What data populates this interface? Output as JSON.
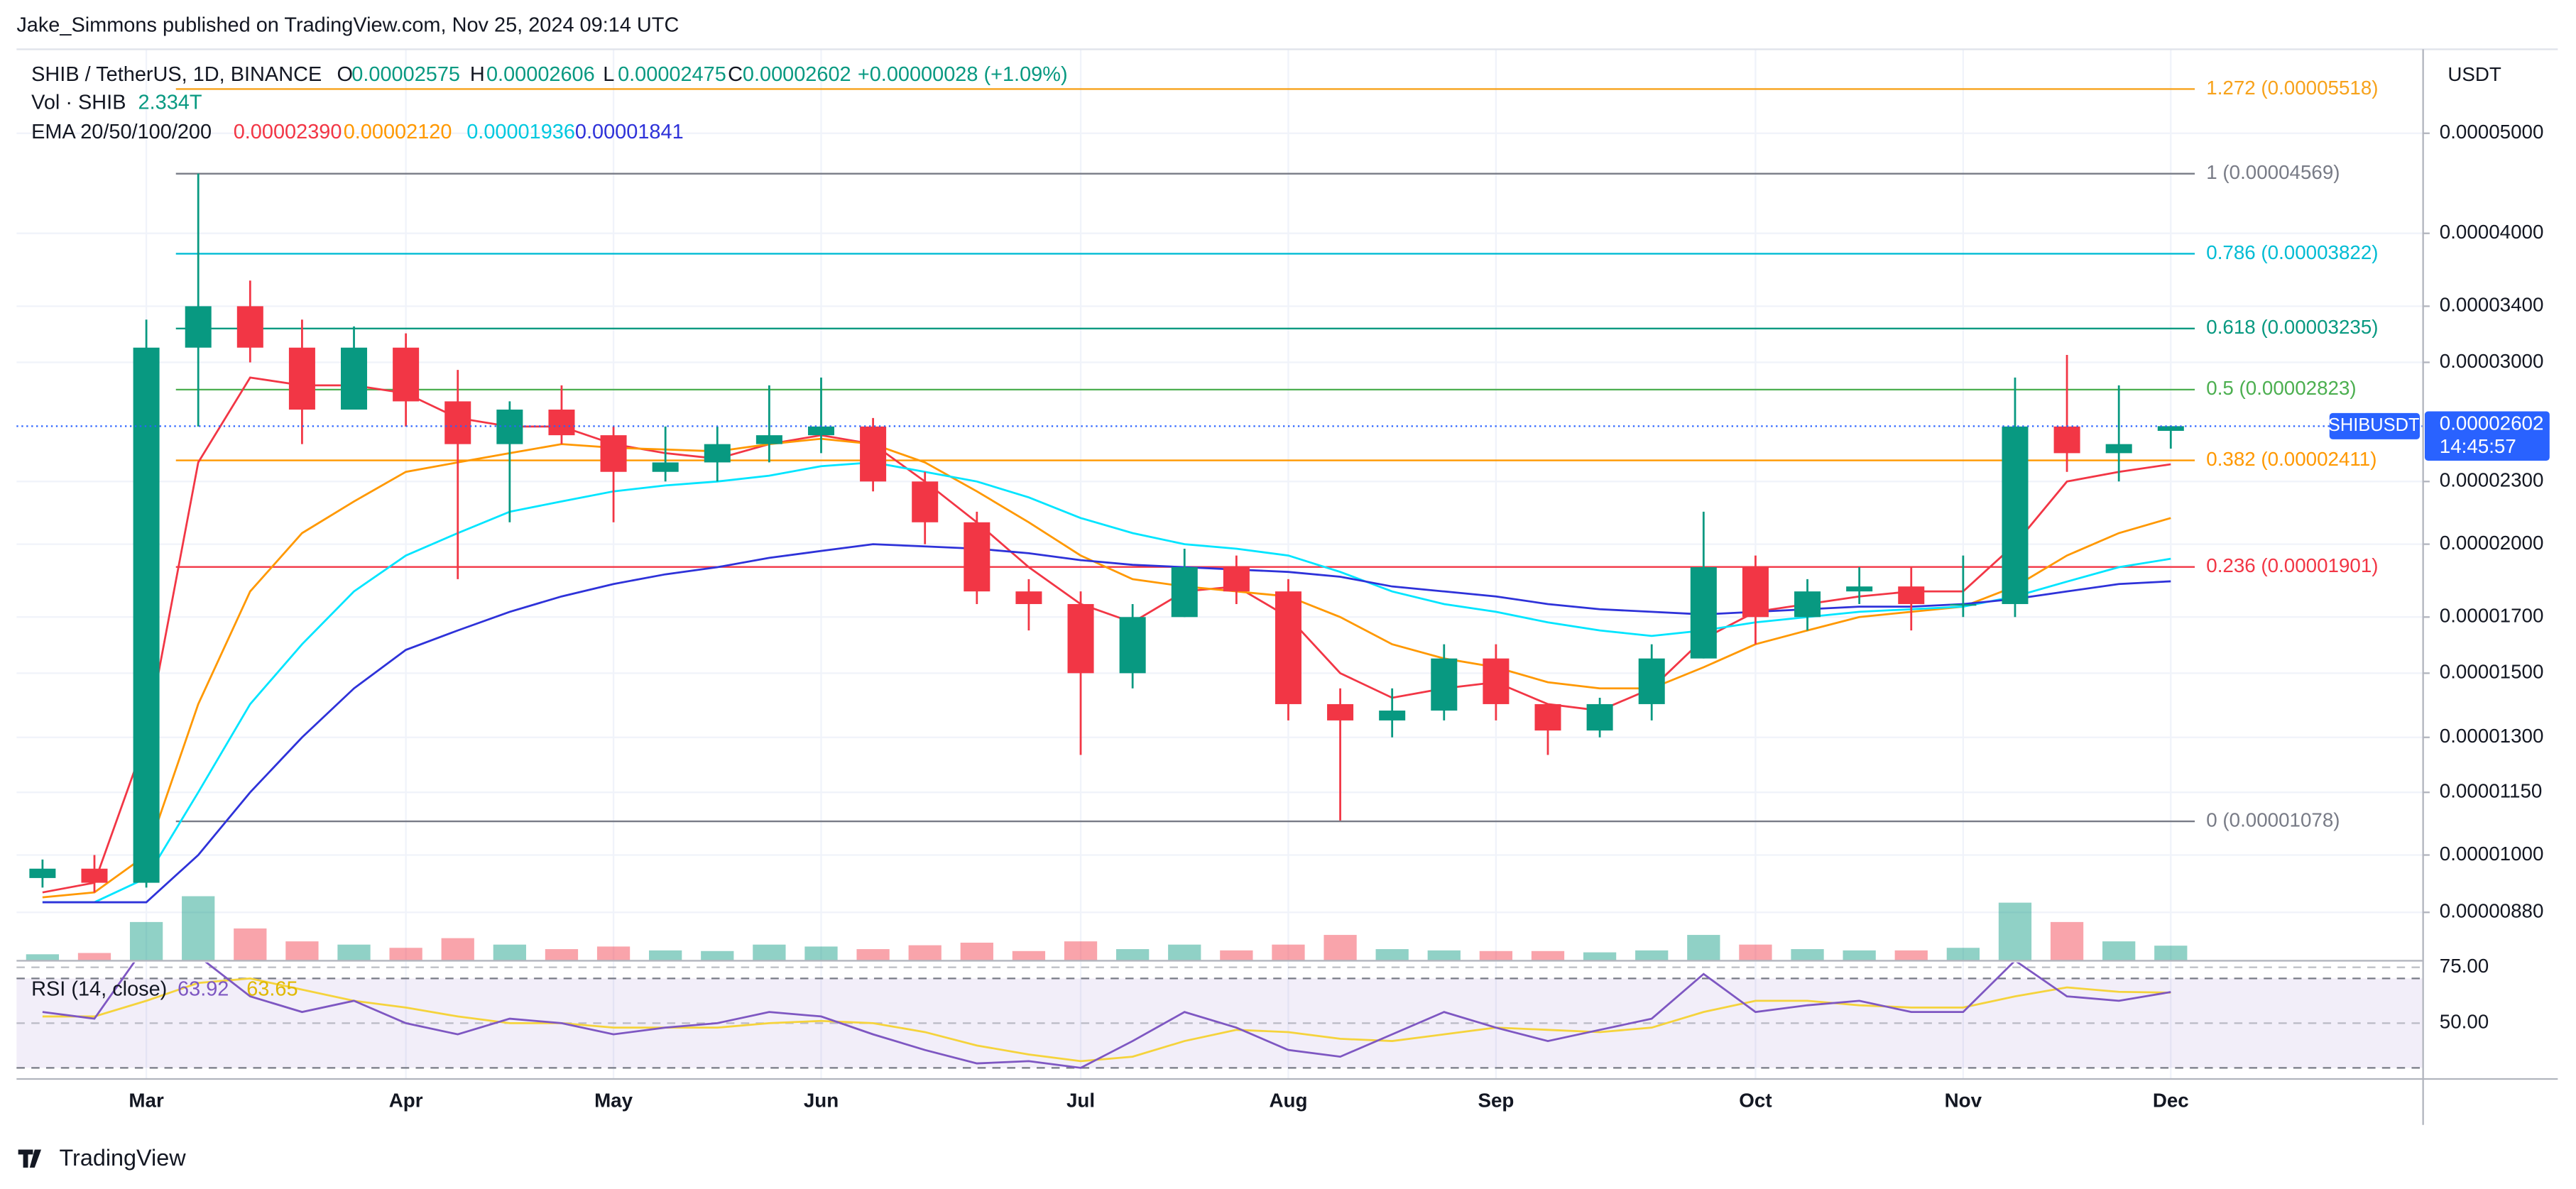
{
  "chart_data": {
    "type": "candlestick",
    "header": "Jake_Simmons published on TradingView.com, Nov 25, 2024 09:14 UTC",
    "legend": {
      "symbol": "SHIB / TetherUS, 1D, BINANCE",
      "ohlc": [
        "O",
        "0.00002575",
        "H",
        "0.00002606",
        "L",
        "0.00002475",
        "C",
        "0.00002602",
        "+0.00000028 (+1.09%)"
      ],
      "volume": [
        "Vol · SHIB",
        "2.334T"
      ],
      "ema": [
        "EMA 20/50/100/200",
        "0.00002390",
        "0.00002120",
        "0.00001936",
        "0.00001841"
      ]
    },
    "currency": "USDT",
    "price_tag": {
      "symbol": "SHIBUSDT",
      "price": {
        "value": 2.602e-05,
        "label": "0.00002602"
      },
      "countdown": "14:45:57"
    },
    "log_scale": true,
    "grid": true,
    "up_color": "#089981",
    "down_color": "#f23645",
    "categories": [
      null,
      null,
      "Mar",
      null,
      null,
      null,
      null,
      "Apr",
      null,
      null,
      null,
      "May",
      null,
      null,
      null,
      "Jun",
      null,
      null,
      null,
      null,
      "Jul",
      null,
      null,
      null,
      "Aug",
      null,
      null,
      null,
      "Sep",
      null,
      null,
      null,
      null,
      "Oct",
      null,
      null,
      null,
      "Nov",
      null,
      null,
      null,
      "Dec"
    ],
    "open": [
      9.5e-06,
      9.7e-06,
      9.4e-06,
      3.1e-05,
      3.4e-05,
      3.1e-05,
      2.7e-05,
      3.1e-05,
      2.75e-05,
      2.5e-05,
      2.7e-05,
      2.55e-05,
      2.35e-05,
      2.4e-05,
      2.5e-05,
      2.55e-05,
      2.6e-05,
      2.3e-05,
      2.1e-05,
      1.8e-05,
      1.75e-05,
      1.5e-05,
      1.7e-05,
      1.9e-05,
      1.8e-05,
      1.4e-05,
      1.35e-05,
      1.38e-05,
      1.55e-05,
      1.4e-05,
      1.32e-05,
      1.4e-05,
      1.55e-05,
      1.9e-05,
      1.7e-05,
      1.8e-05,
      1.82e-05,
      1.75e-05,
      1.75e-05,
      2.6e-05,
      2.45e-05,
      2.575e-05
    ],
    "high": [
      9.9e-06,
      1e-05,
      3.3e-05,
      4.57e-05,
      3.6e-05,
      3.3e-05,
      3.25e-05,
      3.2e-05,
      2.95e-05,
      2.75e-05,
      2.85e-05,
      2.6e-05,
      2.6e-05,
      2.6e-05,
      2.85e-05,
      2.9e-05,
      2.65e-05,
      2.35e-05,
      2.15e-05,
      1.85e-05,
      1.8e-05,
      1.75e-05,
      1.98e-05,
      1.95e-05,
      1.85e-05,
      1.45e-05,
      1.45e-05,
      1.6e-05,
      1.6e-05,
      1.4e-05,
      1.42e-05,
      1.6e-05,
      2.15e-05,
      1.95e-05,
      1.85e-05,
      1.9e-05,
      1.9e-05,
      1.95e-05,
      2.9e-05,
      3.05e-05,
      2.85e-05,
      2.606e-05
    ],
    "low": [
      9.3e-06,
      9.2e-06,
      9.3e-06,
      2.6e-05,
      3e-05,
      2.5e-05,
      2.7e-05,
      2.6e-05,
      1.85e-05,
      2.1e-05,
      2.5e-05,
      2.1e-05,
      2.3e-05,
      2.3e-05,
      2.4e-05,
      2.45e-05,
      2.25e-05,
      2e-05,
      1.75e-05,
      1.65e-05,
      1.25e-05,
      1.45e-05,
      1.7e-05,
      1.75e-05,
      1.35e-05,
      1.08e-05,
      1.3e-05,
      1.35e-05,
      1.35e-05,
      1.25e-05,
      1.3e-05,
      1.35e-05,
      1.55e-05,
      1.6e-05,
      1.65e-05,
      1.75e-05,
      1.65e-05,
      1.7e-05,
      1.7e-05,
      2.35e-05,
      2.3e-05,
      2.475e-05
    ],
    "close": [
      9.7e-06,
      9.4e-06,
      3.1e-05,
      3.4e-05,
      3.1e-05,
      2.7e-05,
      3.1e-05,
      2.75e-05,
      2.5e-05,
      2.7e-05,
      2.55e-05,
      2.35e-05,
      2.4e-05,
      2.5e-05,
      2.55e-05,
      2.6e-05,
      2.3e-05,
      2.1e-05,
      1.8e-05,
      1.75e-05,
      1.5e-05,
      1.7e-05,
      1.9e-05,
      1.8e-05,
      1.4e-05,
      1.35e-05,
      1.38e-05,
      1.55e-05,
      1.4e-05,
      1.32e-05,
      1.4e-05,
      1.55e-05,
      1.9e-05,
      1.7e-05,
      1.8e-05,
      1.82e-05,
      1.75e-05,
      1.75e-05,
      2.6e-05,
      2.45e-05,
      2.5e-05,
      2.602e-05
    ],
    "ylim": [
      7.9e-06,
      6.03e-05
    ],
    "yticks": [
      {
        "value": 5e-05,
        "label": "0.00005000"
      },
      {
        "value": 4e-05,
        "label": "0.00004000"
      },
      {
        "value": 3.4e-05,
        "label": "0.00003400"
      },
      {
        "value": 3e-05,
        "label": "0.00003000"
      },
      {
        "value": 2.3e-05,
        "label": "0.00002300"
      },
      {
        "value": 2e-05,
        "label": "0.00002000"
      },
      {
        "value": 1.7e-05,
        "label": "0.00001700"
      },
      {
        "value": 1.5e-05,
        "label": "0.00001500"
      },
      {
        "value": 1.3e-05,
        "label": "0.00001300"
      },
      {
        "value": 1.15e-05,
        "label": "0.00001150"
      },
      {
        "value": 1e-05,
        "label": "0.00001000"
      },
      {
        "value": 8.8e-06,
        "label": "0.00000880"
      }
    ],
    "ema": [
      {
        "color": "#f23645",
        "values": [
          9.2e-06,
          9.4e-06,
          1.3e-05,
          2.4e-05,
          2.9e-05,
          2.85e-05,
          2.85e-05,
          2.8e-05,
          2.65e-05,
          2.6e-05,
          2.6e-05,
          2.5e-05,
          2.45e-05,
          2.42e-05,
          2.5e-05,
          2.55e-05,
          2.5e-05,
          2.3e-05,
          2.1e-05,
          1.9e-05,
          1.75e-05,
          1.68e-05,
          1.8e-05,
          1.82e-05,
          1.7e-05,
          1.5e-05,
          1.42e-05,
          1.45e-05,
          1.47e-05,
          1.4e-05,
          1.38e-05,
          1.45e-05,
          1.62e-05,
          1.72e-05,
          1.75e-05,
          1.78e-05,
          1.8e-05,
          1.8e-05,
          2e-05,
          2.3e-05,
          2.35e-05,
          2.39e-05
        ]
      },
      {
        "color": "#ff9800",
        "values": [
          9.1e-06,
          9.2e-06,
          1e-05,
          1.4e-05,
          1.8e-05,
          2.05e-05,
          2.2e-05,
          2.35e-05,
          2.4e-05,
          2.45e-05,
          2.5e-05,
          2.48e-05,
          2.47e-05,
          2.46e-05,
          2.5e-05,
          2.53e-05,
          2.5e-05,
          2.4e-05,
          2.25e-05,
          2.1e-05,
          1.95e-05,
          1.85e-05,
          1.82e-05,
          1.8e-05,
          1.78e-05,
          1.7e-05,
          1.6e-05,
          1.55e-05,
          1.52e-05,
          1.47e-05,
          1.45e-05,
          1.45e-05,
          1.52e-05,
          1.6e-05,
          1.65e-05,
          1.7e-05,
          1.72e-05,
          1.74e-05,
          1.82e-05,
          1.95e-05,
          2.05e-05,
          2.12e-05
        ]
      },
      {
        "color": "#00e5ff",
        "values": [
          9e-06,
          9e-06,
          9.5e-06,
          1.15e-05,
          1.4e-05,
          1.6e-05,
          1.8e-05,
          1.95e-05,
          2.05e-05,
          2.15e-05,
          2.2e-05,
          2.25e-05,
          2.28e-05,
          2.3e-05,
          2.33e-05,
          2.38e-05,
          2.4e-05,
          2.35e-05,
          2.3e-05,
          2.22e-05,
          2.12e-05,
          2.05e-05,
          2e-05,
          1.98e-05,
          1.95e-05,
          1.88e-05,
          1.8e-05,
          1.75e-05,
          1.72e-05,
          1.68e-05,
          1.65e-05,
          1.63e-05,
          1.65e-05,
          1.68e-05,
          1.7e-05,
          1.72e-05,
          1.73e-05,
          1.74e-05,
          1.78e-05,
          1.84e-05,
          1.9e-05,
          1.936e-05
        ]
      },
      {
        "color": "#2e32d9",
        "values": [
          9e-06,
          9e-06,
          9e-06,
          1e-05,
          1.15e-05,
          1.3e-05,
          1.45e-05,
          1.58e-05,
          1.65e-05,
          1.72e-05,
          1.78e-05,
          1.83e-05,
          1.87e-05,
          1.9e-05,
          1.94e-05,
          1.97e-05,
          2e-05,
          1.99e-05,
          1.98e-05,
          1.96e-05,
          1.93e-05,
          1.91e-05,
          1.9e-05,
          1.89e-05,
          1.88e-05,
          1.86e-05,
          1.82e-05,
          1.8e-05,
          1.78e-05,
          1.75e-05,
          1.73e-05,
          1.72e-05,
          1.71e-05,
          1.72e-05,
          1.73e-05,
          1.74e-05,
          1.74e-05,
          1.75e-05,
          1.77e-05,
          1.8e-05,
          1.83e-05,
          1.841e-05
        ]
      }
    ],
    "fib_levels": [
      {
        "value": 5.518e-05,
        "label": "1.272 (0.00005518)",
        "color": "#f7a21b"
      },
      {
        "value": 4.569e-05,
        "label": "1 (0.00004569)",
        "color": "#787b86"
      },
      {
        "value": 3.822e-05,
        "label": "0.786 (0.00003822)",
        "color": "#00bcd4"
      },
      {
        "value": 3.235e-05,
        "label": "0.618 (0.00003235)",
        "color": "#089981"
      },
      {
        "value": 2.823e-05,
        "label": "0.5 (0.00002823)",
        "color": "#4caf50"
      },
      {
        "value": 2.411e-05,
        "label": "0.382 (0.00002411)",
        "color": "#ff9800"
      },
      {
        "value": 1.901e-05,
        "label": "0.236 (0.00001901)",
        "color": "#f23645"
      },
      {
        "value": 1.078e-05,
        "label": "0 (0.00001078)",
        "color": "#787b86"
      }
    ],
    "volume": {
      "ylim": [
        0,
        14000000000000.0
      ],
      "values": [
        1000000000000.0,
        1200000000000.0,
        6000000000000.0,
        10000000000000.0,
        5000000000000.0,
        3000000000000.0,
        2500000000000.0,
        2000000000000.0,
        3500000000000.0,
        2500000000000.0,
        1800000000000.0,
        2200000000000.0,
        1600000000000.0,
        1500000000000.0,
        2500000000000.0,
        2200000000000.0,
        1800000000000.0,
        2400000000000.0,
        2800000000000.0,
        1500000000000.0,
        3000000000000.0,
        1800000000000.0,
        2500000000000.0,
        1600000000000.0,
        2500000000000.0,
        4000000000000.0,
        1800000000000.0,
        1600000000000.0,
        1500000000000.0,
        1500000000000.0,
        1300000000000.0,
        1600000000000.0,
        4000000000000.0,
        2500000000000.0,
        1800000000000.0,
        1600000000000.0,
        1600000000000.0,
        2000000000000.0,
        9000000000000.0,
        6000000000000.0,
        3000000000000.0,
        2334000000000.0
      ]
    },
    "rsi": {
      "title": "RSI (14, close)",
      "value_label": "63.92",
      "ma_label": "63.65",
      "ylim": [
        26.5,
        77.2
      ],
      "yticks": [
        {
          "value": 75,
          "label": "75.00"
        },
        {
          "value": 50,
          "label": "50.00"
        }
      ],
      "bands": [
        70,
        30
      ],
      "color": "#7e57c2",
      "ma_color": "#f5d33c",
      "values": [
        55,
        52,
        85,
        80,
        62,
        55,
        60,
        50,
        45,
        52,
        50,
        45,
        48,
        50,
        55,
        53,
        45,
        38,
        32,
        33,
        30,
        42,
        55,
        48,
        38,
        35,
        45,
        55,
        48,
        42,
        47,
        52,
        72,
        55,
        58,
        60,
        55,
        55,
        78,
        62,
        60,
        63.92
      ],
      "ma": [
        53,
        53,
        60,
        68,
        70,
        65,
        60,
        57,
        53,
        50,
        50,
        48,
        48,
        48,
        50,
        51,
        50,
        46,
        40,
        36,
        33,
        35,
        42,
        47,
        46,
        43,
        42,
        45,
        48,
        47,
        46,
        48,
        55,
        60,
        60,
        58,
        57,
        57,
        62,
        66,
        64,
        63.65
      ]
    },
    "footer": "TradingView"
  }
}
